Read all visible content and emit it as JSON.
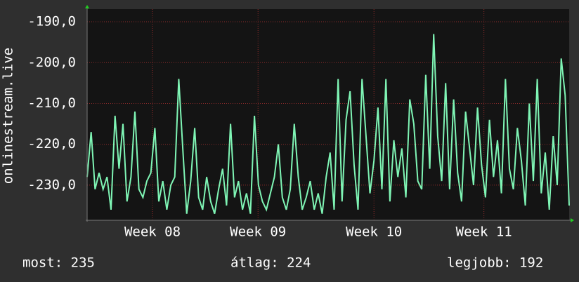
{
  "chart_data": {
    "type": "line",
    "ylabel": "onlinestream.live",
    "color": "#7ff5b5",
    "x": [
      0,
      1,
      2,
      3,
      4,
      5,
      6,
      7,
      8,
      9,
      10,
      11,
      12,
      13,
      14,
      15,
      16,
      17,
      18,
      19,
      20,
      21,
      22,
      23,
      24,
      25,
      26,
      27,
      28,
      29,
      30,
      31,
      32,
      33,
      34,
      35,
      36,
      37,
      38,
      39,
      40,
      41,
      42,
      43,
      44,
      45,
      46,
      47,
      48,
      49,
      50,
      51,
      52,
      53,
      54,
      55,
      56,
      57,
      58,
      59,
      60,
      61,
      62,
      63,
      64,
      65,
      66,
      67,
      68,
      69,
      70,
      71,
      72,
      73,
      74,
      75,
      76,
      77,
      78,
      79,
      80,
      81,
      82,
      83,
      84,
      85,
      86,
      87,
      88,
      89,
      90,
      91,
      92,
      93,
      94,
      95,
      96,
      97,
      98,
      99,
      100,
      101,
      102,
      103,
      104,
      105,
      106,
      107,
      108,
      109,
      110,
      111,
      112,
      113,
      114,
      115,
      116,
      117,
      118,
      119,
      120,
      121
    ],
    "values": [
      -228,
      -217,
      -231,
      -227,
      -231,
      -228,
      -236,
      -213,
      -226,
      -215,
      -234,
      -228,
      -212,
      -231,
      -233,
      -229,
      -227,
      -216,
      -234,
      -229,
      -236,
      -230,
      -228,
      -204,
      -221,
      -237,
      -229,
      -216,
      -233,
      -236,
      -228,
      -234,
      -237,
      -231,
      -226,
      -235,
      -215,
      -233,
      -229,
      -236,
      -232,
      -237,
      -213,
      -230,
      -234,
      -236,
      -232,
      -228,
      -220,
      -233,
      -236,
      -231,
      -215,
      -228,
      -236,
      -233,
      -229,
      -236,
      -232,
      -237,
      -228,
      -222,
      -236,
      -204,
      -234,
      -214,
      -207,
      -225,
      -236,
      -204,
      -218,
      -232,
      -224,
      -211,
      -231,
      -204,
      -234,
      -219,
      -228,
      -221,
      -233,
      -209,
      -215,
      -229,
      -231,
      -203,
      -226,
      -193,
      -218,
      -229,
      -205,
      -231,
      -209,
      -227,
      -234,
      -212,
      -221,
      -230,
      -211,
      -225,
      -233,
      -214,
      -228,
      -219,
      -232,
      -204,
      -226,
      -231,
      -216,
      -224,
      -235,
      -210,
      -229,
      -204,
      -232,
      -222,
      -236,
      -218,
      -230,
      -199,
      -208,
      -235
    ],
    "xlim": [
      0,
      121
    ],
    "xticks": [
      {
        "value": 16.4,
        "label": "Week 08"
      },
      {
        "value": 42.9,
        "label": "Week 09"
      },
      {
        "value": 72.0,
        "label": "Week 10"
      },
      {
        "value": 99.6,
        "label": "Week 11"
      }
    ],
    "ylim": [
      -238.6,
      -186.9
    ],
    "yticks": [
      {
        "value": -230,
        "label": "-230,0"
      },
      {
        "value": -220,
        "label": "-220,0"
      },
      {
        "value": -210,
        "label": "-210,0"
      },
      {
        "value": -200,
        "label": "-200,0"
      },
      {
        "value": -190,
        "label": "-190,0"
      }
    ],
    "grid": true,
    "summary": [
      "most: 235",
      "átlag: 224",
      "legjobb: 192"
    ]
  }
}
